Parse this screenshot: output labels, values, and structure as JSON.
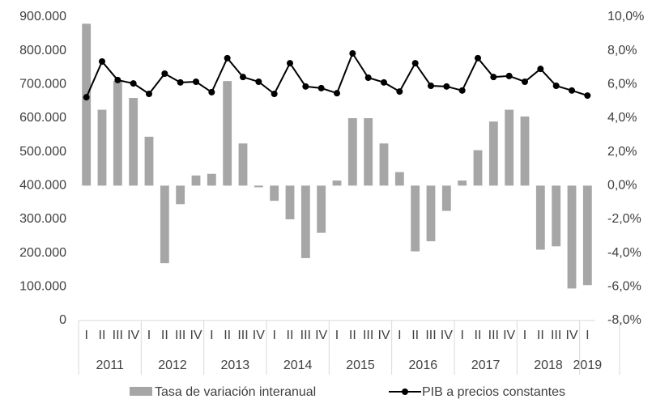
{
  "chart_data": {
    "type": "combo",
    "categories": [
      "I",
      "II",
      "III",
      "IV",
      "I",
      "II",
      "III",
      "IV",
      "I",
      "II",
      "III",
      "IV",
      "I",
      "II",
      "III",
      "IV",
      "I",
      "II",
      "III",
      "IV",
      "I",
      "II",
      "III",
      "IV",
      "I",
      "II",
      "III",
      "IV",
      "I",
      "II",
      "III",
      "IV",
      "I"
    ],
    "category_groups": [
      "2011",
      "2012",
      "2013",
      "2014",
      "2015",
      "2016",
      "2017",
      "2018",
      "2019"
    ],
    "series": [
      {
        "name": "Tasa de variación interanual",
        "type": "bar",
        "axis": "y2",
        "color": "#a6a6a6",
        "values": [
          9.6,
          4.5,
          6.2,
          5.2,
          2.9,
          -4.6,
          -1.1,
          0.6,
          0.7,
          6.2,
          2.5,
          -0.1,
          -0.9,
          -2.0,
          -4.3,
          -2.8,
          0.3,
          4.0,
          4.0,
          2.5,
          0.8,
          -3.9,
          -3.3,
          -1.5,
          0.3,
          2.1,
          3.8,
          4.5,
          4.1,
          -3.8,
          -3.6,
          -6.1,
          -5.9
        ]
      },
      {
        "name": "PIB a precios constantes",
        "type": "line",
        "axis": "y",
        "color": "#000000",
        "values": [
          662000,
          768000,
          713000,
          703000,
          672000,
          732000,
          706000,
          708000,
          677000,
          778000,
          722000,
          708000,
          672000,
          763000,
          694000,
          689000,
          674000,
          792000,
          720000,
          706000,
          679000,
          763000,
          696000,
          694000,
          682000,
          778000,
          722000,
          725000,
          708000,
          746000,
          696000,
          682000,
          667000
        ]
      }
    ],
    "ylim": [
      0,
      900000
    ],
    "yticks": [
      0,
      {
        "value": 100000,
        "label": "100.000"
      },
      {
        "value": 200000,
        "label": "200.000"
      },
      {
        "value": 300000,
        "label": "300.000"
      },
      {
        "value": 400000,
        "label": "400.000"
      },
      {
        "value": 500000,
        "label": "500.000"
      },
      {
        "value": 600000,
        "label": "600.000"
      },
      {
        "value": 700000,
        "label": "700.000"
      },
      {
        "value": 800000,
        "label": "800.000"
      },
      {
        "value": 900000,
        "label": "900.000"
      }
    ],
    "y2lim": [
      -8,
      10
    ],
    "y2ticks": [
      {
        "value": -8,
        "label": "-8,0%"
      },
      {
        "value": -6,
        "label": "-6,0%"
      },
      {
        "value": -4,
        "label": "-4,0%"
      },
      {
        "value": -2,
        "label": "-2,0%"
      },
      {
        "value": 0,
        "label": "0,0%"
      },
      {
        "value": 2,
        "label": "2,0%"
      },
      {
        "value": 4,
        "label": "4,0%"
      },
      {
        "value": 6,
        "label": "6,0%"
      },
      {
        "value": 8,
        "label": "8,0%"
      },
      {
        "value": 10,
        "label": "10,0%"
      }
    ],
    "grid": false,
    "legend": "bottom"
  }
}
